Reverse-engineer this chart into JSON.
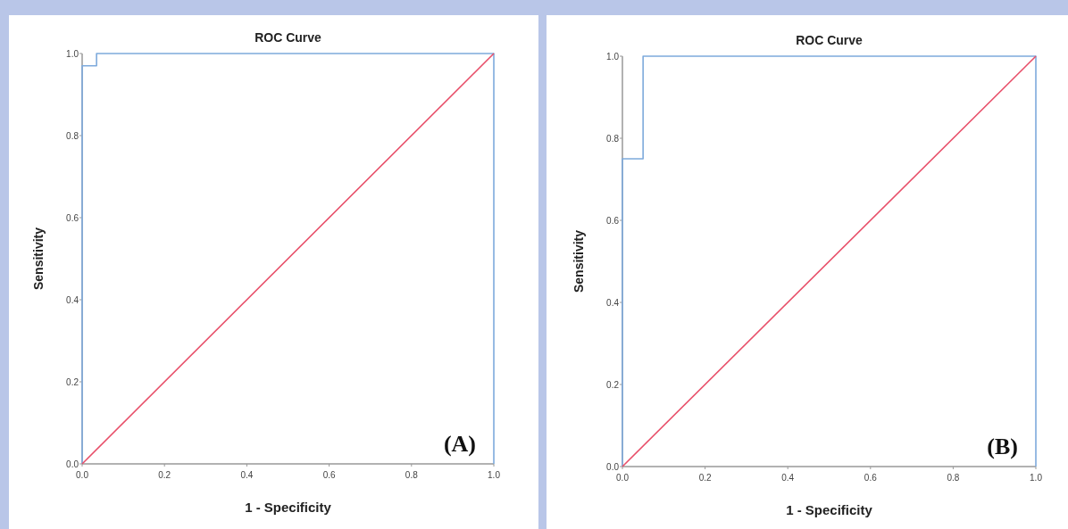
{
  "chart_data": [
    {
      "type": "line",
      "title": "ROC Curve",
      "xlabel": "1 - Specificity",
      "ylabel": "Sensitivity",
      "annotations": [
        "(A)"
      ],
      "xlim": [
        0,
        1
      ],
      "ylim": [
        0,
        1
      ],
      "xticks": [
        {
          "value": 0,
          "label": "0.0"
        },
        {
          "value": 0.2,
          "label": "0.2"
        },
        {
          "value": 0.4,
          "label": "0.4"
        },
        {
          "value": 0.6,
          "label": "0.6"
        },
        {
          "value": 0.8,
          "label": "0.8"
        },
        {
          "value": 1,
          "label": "1.0"
        }
      ],
      "yticks": [
        {
          "value": 0,
          "label": "0.0"
        },
        {
          "value": 0.2,
          "label": "0.2"
        },
        {
          "value": 0.4,
          "label": "0.4"
        },
        {
          "value": 0.6,
          "label": "0.6"
        },
        {
          "value": 0.8,
          "label": "0.8"
        },
        {
          "value": 1,
          "label": "1.0"
        }
      ],
      "grid": false,
      "series": [
        {
          "color": "#7eaadc",
          "x": [
            0,
            0,
            0.035,
            0.035,
            1,
            1
          ],
          "values": [
            0,
            0.97,
            0.97,
            1,
            1,
            0
          ]
        },
        {
          "color": "#e8506a",
          "x": [
            0,
            1
          ],
          "values": [
            0,
            1
          ]
        }
      ]
    },
    {
      "type": "line",
      "title": "ROC Curve",
      "xlabel": "1 - Specificity",
      "ylabel": "Sensitivity",
      "annotations": [
        "(B)"
      ],
      "xlim": [
        0,
        1
      ],
      "ylim": [
        0,
        1
      ],
      "xticks": [
        {
          "value": 0,
          "label": "0.0"
        },
        {
          "value": 0.2,
          "label": "0.2"
        },
        {
          "value": 0.4,
          "label": "0.4"
        },
        {
          "value": 0.6,
          "label": "0.6"
        },
        {
          "value": 0.8,
          "label": "0.8"
        },
        {
          "value": 1,
          "label": "1.0"
        }
      ],
      "yticks": [
        {
          "value": 0,
          "label": "0.0"
        },
        {
          "value": 0.2,
          "label": "0.2"
        },
        {
          "value": 0.4,
          "label": "0.4"
        },
        {
          "value": 0.6,
          "label": "0.6"
        },
        {
          "value": 0.8,
          "label": "0.8"
        },
        {
          "value": 1,
          "label": "1.0"
        }
      ],
      "grid": false,
      "series": [
        {
          "color": "#7eaadc",
          "x": [
            0,
            0,
            0.05,
            0.05,
            1,
            1
          ],
          "values": [
            0,
            0.75,
            0.75,
            1,
            1,
            0
          ]
        },
        {
          "color": "#e8506a",
          "x": [
            0,
            1
          ],
          "values": [
            0,
            1
          ]
        }
      ]
    }
  ]
}
